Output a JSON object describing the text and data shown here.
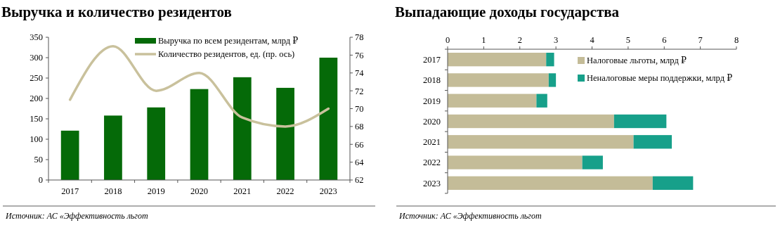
{
  "chart_data": [
    {
      "type": "bar",
      "title": "Выручка и количество резидентов",
      "categories": [
        "2017",
        "2018",
        "2019",
        "2020",
        "2021",
        "2022",
        "2023"
      ],
      "series": [
        {
          "name": "Выручка по всем резидентам, млрд ₽",
          "color": "#056a08",
          "values": [
            121,
            158,
            178,
            223,
            252,
            226,
            300
          ]
        },
        {
          "name": "Количество резидентов, ед. (пр. ось)",
          "type": "line",
          "axis": "y2",
          "color": "#c9c19c",
          "values": [
            71,
            77,
            72,
            74,
            69,
            68,
            70
          ]
        }
      ],
      "ylim": [
        0,
        350
      ],
      "yticks": [
        0,
        50,
        100,
        150,
        200,
        250,
        300,
        350
      ],
      "y2lim": [
        62,
        78
      ],
      "y2ticks": [
        62,
        64,
        66,
        68,
        70,
        72,
        74,
        76,
        78
      ],
      "legend": "top",
      "annotations": [
        "Источник: АС «Эффективность льгот"
      ]
    },
    {
      "type": "bar",
      "title": "Выпадающие доходы государства",
      "orientation": "horizontal",
      "stacked": true,
      "categories": [
        "2017",
        "2018",
        "2019",
        "2020",
        "2021",
        "2022",
        "2023"
      ],
      "series": [
        {
          "name": "Налоговые льготы, млрд ₽",
          "color": "#c4bc98",
          "values": [
            2.73,
            2.8,
            2.46,
            4.61,
            5.15,
            3.73,
            5.68
          ]
        },
        {
          "name": "Неналоговые меры поддержки, млрд ₽",
          "color": "#17a08a",
          "values": [
            0.22,
            0.2,
            0.3,
            1.45,
            1.06,
            0.57,
            1.12
          ]
        }
      ],
      "xlim": [
        0,
        8
      ],
      "xticks": [
        0,
        1,
        2,
        3,
        4,
        5,
        6,
        7,
        8
      ],
      "legend": "top right",
      "annotations": [
        "Источник: АС «Эффективность льгот"
      ]
    }
  ]
}
